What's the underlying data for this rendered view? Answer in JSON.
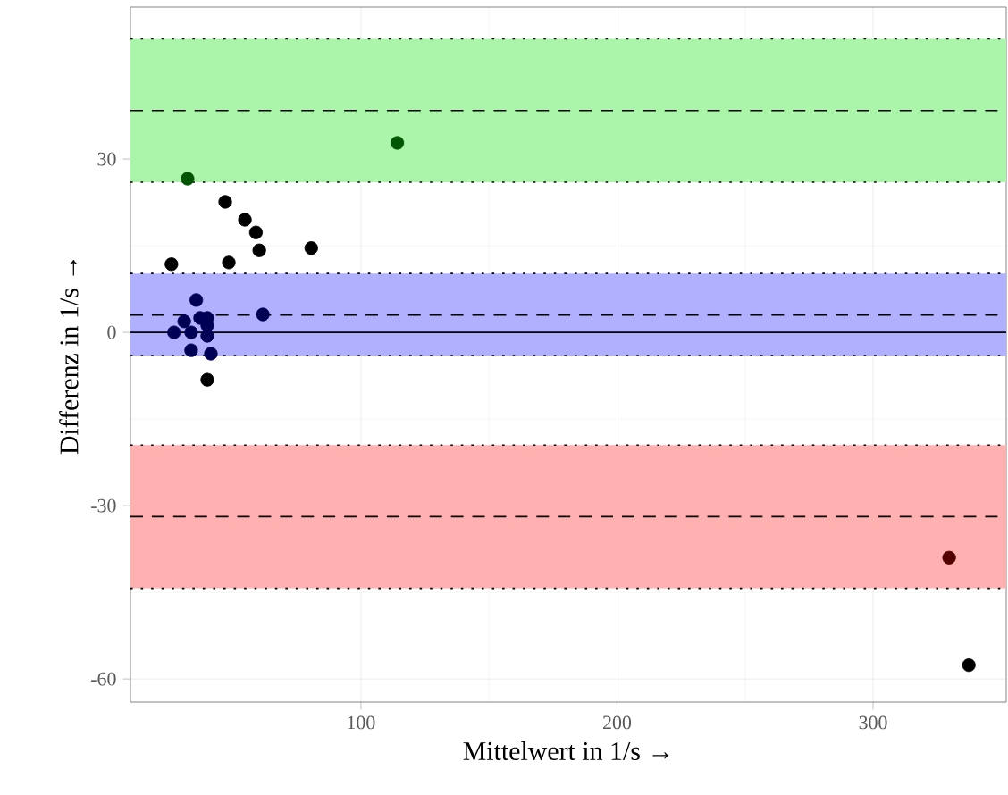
{
  "chart_data": {
    "type": "scatter",
    "xlabel": "Mittelwert in 1/s →",
    "ylabel": "Differenz in 1/s →",
    "xlim": [
      10,
      352
    ],
    "ylim": [
      -64,
      56.3
    ],
    "xticks": [
      100,
      200,
      300
    ],
    "yticks": [
      -60,
      -30,
      0,
      30
    ],
    "grid": true,
    "marker": "circle",
    "x": [
      114.2,
      32.3,
      47,
      54.7,
      59,
      60.3,
      80.6,
      26,
      48.4,
      61.7,
      35.7,
      27,
      31,
      33.7,
      33.7,
      41.4,
      40,
      37.2,
      40,
      40,
      40,
      329.7,
      337.4
    ],
    "values": [
      32.8,
      26.6,
      22.6,
      19.5,
      17.3,
      14.2,
      14.6,
      11.8,
      12.1,
      3.1,
      5.6,
      0,
      1.9,
      0,
      -3.1,
      -3.7,
      -0.6,
      2.5,
      2.5,
      1.2,
      -8.2,
      -39,
      -57.6
    ],
    "colors": [
      "#005500",
      "#005500",
      "#000000",
      "#000000",
      "#000000",
      "#000000",
      "#000000",
      "#000000",
      "#000000",
      "#000055",
      "#000055",
      "#000055",
      "#000055",
      "#000055",
      "#000055",
      "#000055",
      "#000055",
      "#000055",
      "#000055",
      "#000055",
      "#000000",
      "#550000",
      "#000000"
    ],
    "bands": [
      {
        "axis": "y",
        "from": 26,
        "to": 50.8,
        "color": "#aaf5aa"
      },
      {
        "axis": "y",
        "from": -4,
        "to": 10.2,
        "color": "#b0b0ff"
      },
      {
        "axis": "y",
        "from": -44.3,
        "to": -19.5,
        "color": "#ffb0b0"
      }
    ],
    "ref_lines": [
      {
        "axis": "y",
        "value": 0,
        "line_style": "solid"
      },
      {
        "axis": "y",
        "value": 3,
        "line_style": "dashed"
      },
      {
        "axis": "y",
        "value": 38.4,
        "line_style": "dashed"
      },
      {
        "axis": "y",
        "value": -31.9,
        "line_style": "dashed"
      },
      {
        "axis": "y",
        "value": 10.2,
        "line_style": "dotted"
      },
      {
        "axis": "y",
        "value": -4,
        "line_style": "dotted"
      },
      {
        "axis": "y",
        "value": 50.8,
        "line_style": "dotted"
      },
      {
        "axis": "y",
        "value": 26,
        "line_style": "dotted"
      },
      {
        "axis": "y",
        "value": -19.5,
        "line_style": "dotted"
      },
      {
        "axis": "y",
        "value": -44.3,
        "line_style": "dotted"
      }
    ]
  }
}
